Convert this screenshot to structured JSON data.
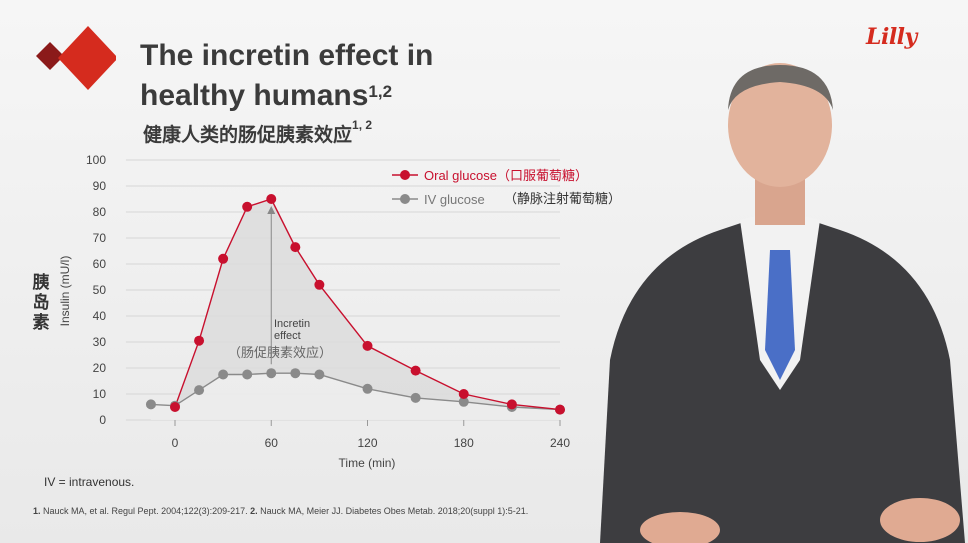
{
  "title_line1": "The incretin effect in",
  "title_line2": "healthy humans",
  "title_sup": "1,2",
  "subtitle_cn": "健康人类的肠促胰素效应",
  "subtitle_sup": "1, 2",
  "brand": "Lilly",
  "footnote": "IV = intravenous.",
  "ref1_num": "1.",
  "ref1": " Nauck MA, et al. Regul Pept. 2004;122(3):209-217. ",
  "ref2_num": "2.",
  "ref2": " Nauck MA, Meier JJ. Diabetes Obes Metab. 2018;20(suppl 1):5-21.",
  "colors": {
    "brand_red": "#d52b1e",
    "oral": "#c8102e",
    "iv": "#8a8a8a"
  },
  "chart_data": {
    "type": "line",
    "xlabel": "Time (min)",
    "ylabel": "Insulin (mU/l)",
    "ylabel_cn": "胰岛素",
    "x_ticks": [
      0,
      60,
      120,
      180,
      240
    ],
    "y_ticks": [
      0,
      10,
      20,
      30,
      40,
      50,
      60,
      70,
      80,
      90,
      100
    ],
    "xlim": [
      -15,
      240
    ],
    "ylim": [
      0,
      100
    ],
    "grid": true,
    "legend_position": "top-right",
    "series": [
      {
        "name": "Oral glucose",
        "name_cn": "（口服葡萄糖）",
        "color": "#c8102e",
        "x": [
          0,
          15,
          30,
          45,
          60,
          75,
          90,
          120,
          150,
          180,
          210,
          240
        ],
        "y": [
          5,
          30.5,
          62,
          82,
          85,
          66.5,
          52,
          28.5,
          19,
          10,
          6,
          4
        ]
      },
      {
        "name": "IV glucose",
        "name_cn": "（静脉注射葡萄糖）",
        "color": "#8a8a8a",
        "x": [
          -15,
          0,
          15,
          30,
          45,
          60,
          75,
          90,
          120,
          150,
          180,
          210,
          240
        ],
        "y": [
          6,
          5.5,
          11.5,
          17.5,
          17.5,
          18,
          18,
          17.5,
          12,
          8.5,
          7,
          5,
          4
        ]
      }
    ],
    "annotation": {
      "text1": "Incretin",
      "text2": "effect",
      "text_cn": "（肠促胰素效应）",
      "x": 60
    }
  }
}
